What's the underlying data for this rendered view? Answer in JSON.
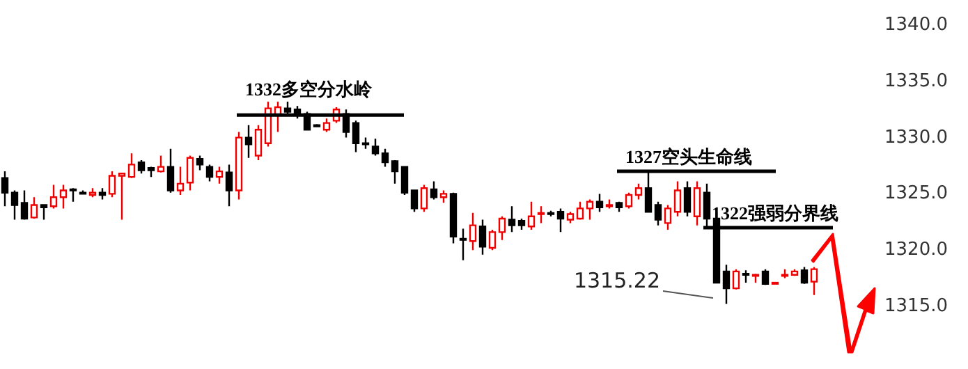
{
  "chart_data": {
    "type": "candlestick",
    "categories": [
      null,
      null,
      null,
      null,
      null,
      null,
      null,
      null,
      null,
      null,
      null,
      null,
      null,
      null,
      null,
      null,
      null,
      null,
      null,
      null,
      null,
      null,
      null,
      null,
      null,
      null,
      null,
      null,
      null,
      null,
      null,
      null,
      null,
      null,
      null,
      null,
      null,
      null,
      null,
      null,
      null,
      null,
      null,
      null,
      null,
      null,
      null,
      null,
      null,
      null,
      null,
      null,
      null,
      null,
      null,
      null,
      null,
      null,
      null,
      null,
      null,
      null,
      null,
      null,
      null,
      null,
      null,
      null,
      null,
      null,
      null,
      null,
      null,
      null,
      null,
      null,
      null,
      null,
      null,
      null,
      null,
      null,
      null,
      null
    ],
    "ohlc": [
      [
        1326.4,
        1327.0,
        1323.9,
        1325.1
      ],
      [
        1325.1,
        1325.3,
        1322.7,
        1324.0
      ],
      [
        1324.2,
        1325.3,
        1322.7,
        1322.8
      ],
      [
        1322.9,
        1324.7,
        1322.8,
        1324.0
      ],
      [
        1324.0,
        1324.0,
        1322.7,
        1323.8
      ],
      [
        1323.9,
        1325.8,
        1323.7,
        1324.7
      ],
      [
        1324.7,
        1325.8,
        1323.7,
        1325.3
      ],
      [
        1325.4,
        1325.5,
        1324.3,
        1325.3
      ],
      [
        1325.1,
        1325.3,
        1325.0,
        1325.0
      ],
      [
        1324.9,
        1325.5,
        1324.7,
        1325.1
      ],
      [
        1325.1,
        1325.5,
        1324.5,
        1324.9
      ],
      [
        1325.0,
        1327.0,
        1324.7,
        1326.6
      ],
      [
        1326.6,
        1326.8,
        1322.7,
        1326.8
      ],
      [
        1326.5,
        1328.6,
        1326.4,
        1327.6
      ],
      [
        1327.8,
        1328.0,
        1326.8,
        1327.1
      ],
      [
        1327.3,
        1327.4,
        1326.5,
        1327.1
      ],
      [
        1327.0,
        1328.4,
        1326.9,
        1327.4
      ],
      [
        1327.4,
        1329.0,
        1325.1,
        1325.3
      ],
      [
        1325.3,
        1327.4,
        1324.9,
        1325.9
      ],
      [
        1326.0,
        1328.4,
        1325.3,
        1328.2
      ],
      [
        1328.1,
        1328.4,
        1327.1,
        1327.6
      ],
      [
        1327.4,
        1327.6,
        1326.1,
        1326.5
      ],
      [
        1326.5,
        1327.4,
        1325.9,
        1327.0
      ],
      [
        1326.9,
        1327.6,
        1323.9,
        1325.3
      ],
      [
        1325.3,
        1330.5,
        1324.5,
        1330.0
      ],
      [
        1330.0,
        1331.1,
        1328.2,
        1329.4
      ],
      [
        1328.4,
        1331.1,
        1328.0,
        1330.7
      ],
      [
        1329.5,
        1333.2,
        1329.2,
        1332.6
      ],
      [
        1332.0,
        1333.2,
        1330.5,
        1332.7
      ],
      [
        1332.6,
        1333.2,
        1332.0,
        1332.3
      ],
      [
        1332.5,
        1332.8,
        1331.7,
        1332.2
      ],
      [
        1332.1,
        1332.3,
        1330.7,
        1330.7
      ],
      [
        1331.1,
        1331.2,
        1331.0,
        1331.0
      ],
      [
        1330.7,
        1331.7,
        1330.5,
        1331.3
      ],
      [
        1331.5,
        1332.7,
        1331.3,
        1332.5
      ],
      [
        1332.1,
        1332.5,
        1330.0,
        1330.5
      ],
      [
        1331.3,
        1331.5,
        1328.7,
        1329.5
      ],
      [
        1329.5,
        1330.0,
        1329.0,
        1329.4
      ],
      [
        1329.2,
        1329.9,
        1328.4,
        1328.6
      ],
      [
        1328.6,
        1329.0,
        1327.4,
        1327.8
      ],
      [
        1327.9,
        1328.0,
        1325.9,
        1327.0
      ],
      [
        1327.4,
        1327.4,
        1324.9,
        1325.1
      ],
      [
        1325.3,
        1325.3,
        1323.4,
        1323.7
      ],
      [
        1323.7,
        1325.8,
        1323.4,
        1325.5
      ],
      [
        1325.4,
        1326.1,
        1324.5,
        1324.7
      ],
      [
        1324.7,
        1325.3,
        1324.2,
        1325.0
      ],
      [
        1325.0,
        1325.1,
        1320.6,
        1321.2
      ],
      [
        1321.0,
        1321.9,
        1319.1,
        1320.9
      ],
      [
        1320.8,
        1323.3,
        1320.0,
        1322.2
      ],
      [
        1322.1,
        1322.7,
        1319.6,
        1320.3
      ],
      [
        1320.2,
        1321.8,
        1320.0,
        1321.6
      ],
      [
        1321.6,
        1323.0,
        1320.9,
        1322.8
      ],
      [
        1322.7,
        1323.9,
        1321.6,
        1322.2
      ],
      [
        1322.6,
        1322.8,
        1321.8,
        1322.2
      ],
      [
        1322.1,
        1324.3,
        1321.8,
        1323.0
      ],
      [
        1323.2,
        1323.9,
        1322.4,
        1323.3
      ],
      [
        1323.3,
        1323.5,
        1323.0,
        1323.2
      ],
      [
        1323.4,
        1323.7,
        1321.6,
        1322.8
      ],
      [
        1322.7,
        1323.4,
        1322.4,
        1323.2
      ],
      [
        1322.8,
        1324.3,
        1322.7,
        1323.7
      ],
      [
        1323.7,
        1324.5,
        1322.7,
        1324.3
      ],
      [
        1324.3,
        1325.0,
        1323.4,
        1323.8
      ],
      [
        1323.9,
        1324.5,
        1323.7,
        1324.0
      ],
      [
        1324.2,
        1324.3,
        1323.4,
        1323.8
      ],
      [
        1323.9,
        1325.1,
        1323.7,
        1324.9
      ],
      [
        1324.9,
        1325.9,
        1324.5,
        1325.5
      ],
      [
        1325.5,
        1327.1,
        1323.4,
        1323.4
      ],
      [
        1324.0,
        1324.3,
        1322.2,
        1322.7
      ],
      [
        1322.4,
        1324.0,
        1321.8,
        1323.7
      ],
      [
        1323.4,
        1326.1,
        1323.0,
        1325.3
      ],
      [
        1325.5,
        1326.1,
        1323.0,
        1323.4
      ],
      [
        1323.0,
        1326.1,
        1322.2,
        1325.5
      ],
      [
        1325.1,
        1325.9,
        1322.1,
        1322.8
      ],
      [
        1322.8,
        1323.3,
        1317.1,
        1317.1
      ],
      [
        1318.1,
        1318.7,
        1315.22,
        1316.6
      ],
      [
        1316.6,
        1318.3,
        1316.5,
        1318.1
      ],
      [
        1317.9,
        1318.2,
        1317.1,
        1317.8
      ],
      [
        1317.7,
        1317.9,
        1317.1,
        1317.8
      ],
      [
        1318.1,
        1318.3,
        1316.9,
        1317.0
      ],
      [
        1317.0,
        1317.1,
        1317.0,
        1317.1
      ],
      [
        1317.7,
        1318.3,
        1317.5,
        1317.8
      ],
      [
        1317.8,
        1318.3,
        1317.7,
        1318.1
      ],
      [
        1318.2,
        1318.5,
        1317.0,
        1317.1
      ],
      [
        1317.2,
        1318.5,
        1316.0,
        1318.3
      ]
    ],
    "ylim": [
      1315,
      1340
    ],
    "yticks": [
      {
        "value": 1315,
        "label": "1315.0"
      },
      {
        "value": 1320,
        "label": "1320.0"
      },
      {
        "value": 1325,
        "label": "1325.0"
      },
      {
        "value": 1330,
        "label": "1330.0"
      },
      {
        "value": 1335,
        "label": "1335.0"
      },
      {
        "value": 1340,
        "label": "1340.0"
      }
    ],
    "ref_lines": [
      {
        "axis": "y",
        "value": 1332,
        "label": "1332多空分水岭",
        "color": "#000000"
      },
      {
        "axis": "y",
        "value": 1327,
        "label": "1327空头生命线",
        "color": "#000000"
      },
      {
        "axis": "y",
        "value": 1322,
        "label": "1322强弱分界线",
        "color": "#000000"
      }
    ],
    "annotations": [
      "1315.22"
    ]
  }
}
